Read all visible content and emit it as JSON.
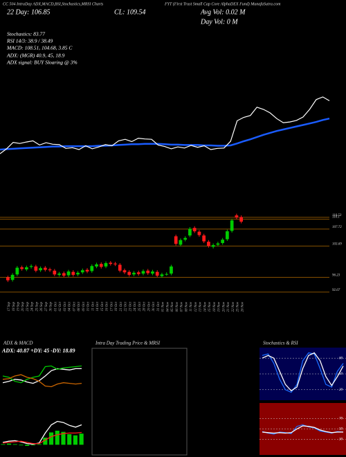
{
  "header": {
    "top": "CC 504 IntraDay ADX,MACD,BSI,Stochastics,MRSI Charts",
    "site": "FYT (First Trust Small Cap Core AlphaDEX Fund) MunafaSutra.com",
    "day22": "22 Day: 106.85",
    "close": "CL: 109.54",
    "avg_vol": "Avg Vol: 0.02 M",
    "day_vol": "Day Vol: 0 M",
    "stochastics": "Stochastics: 83.77",
    "rsi": "RSI 14/3: 38.9 / 38.49",
    "macd": "MACD: 108.51, 104.68, 3.85 C",
    "adx": "ADX: (MGR) 40.9, 45, 18.9",
    "adx_signal": "ADX signal: BUY Sloaring @ 3%"
  },
  "chart_data": [
    {
      "type": "candlestick",
      "categories": [
        "17 Sep",
        "18 Sep",
        "19 Sep",
        "20 Sep",
        "23 Sep",
        "24 Sep",
        "25 Sep",
        "26 Sep",
        "27 Sep",
        "30 Sep",
        "01 Oct",
        "02 Oct",
        "03 Oct",
        "04 Oct",
        "07 Oct",
        "08 Oct",
        "09 Oct",
        "10 Oct",
        "11 Oct",
        "14 Oct",
        "15 Oct",
        "16 Oct",
        "17 Oct",
        "18 Oct",
        "21 Oct",
        "22 Oct",
        "23 Oct",
        "24 Oct",
        "25 Oct",
        "28 Oct",
        "29 Oct",
        "30 Oct",
        "31 Oct",
        "01 Nov",
        "04 Nov",
        "05 Nov",
        "06 Nov",
        "07 Nov",
        "08 Nov",
        "11 Nov",
        "12 Nov",
        "13 Nov",
        "14 Nov",
        "15 Nov",
        "18 Nov",
        "19 Nov",
        "20 Nov",
        "21 Nov",
        "22 Nov",
        "25 Nov",
        "26 Nov"
      ],
      "open": [
        96.2,
        95.6,
        96.9,
        98.6,
        98.1,
        98.7,
        98.8,
        97.9,
        98.5,
        98.1,
        97.8,
        96.8,
        97.2,
        96.7,
        97.5,
        96.9,
        97.4,
        98.0,
        97.7,
        98.8,
        99.4,
        98.8,
        99.7,
        99.5,
        99.2,
        97.9,
        97.5,
        96.9,
        97.4,
        97.1,
        97.8,
        97.1,
        97.5,
        96.5,
        97.0,
        97.1,
        106.0,
        104.0,
        105.2,
        106.2,
        108.0,
        107.1,
        106.2,
        104.7,
        103.5,
        104.0,
        104.4,
        105.3,
        107.3,
        111.0,
        110.6
      ],
      "high": [
        96.6,
        97.2,
        98.9,
        99.0,
        99.0,
        99.3,
        99.2,
        98.8,
        98.9,
        98.5,
        98.2,
        97.5,
        97.6,
        98.0,
        97.9,
        97.7,
        98.3,
        98.4,
        99.3,
        99.7,
        99.8,
        100.0,
        100.1,
        99.9,
        99.6,
        98.3,
        97.9,
        97.7,
        97.8,
        98.1,
        98.2,
        98.0,
        97.9,
        97.3,
        97.4,
        99.2,
        106.4,
        105.5,
        106.0,
        108.2,
        108.4,
        107.5,
        106.6,
        105.1,
        104.3,
        104.7,
        105.6,
        107.6,
        110.2,
        111.4,
        111.0
      ],
      "low": [
        95.1,
        95.2,
        96.5,
        97.8,
        97.7,
        98.3,
        97.4,
        97.5,
        97.6,
        97.5,
        96.5,
        96.4,
        96.2,
        96.3,
        96.4,
        96.5,
        97.0,
        97.2,
        97.3,
        98.4,
        98.3,
        98.4,
        99.0,
        98.9,
        97.4,
        97.0,
        96.4,
        96.5,
        96.6,
        96.7,
        96.8,
        96.7,
        96.2,
        96.1,
        96.6,
        96.7,
        103.8,
        103.6,
        104.8,
        105.8,
        106.8,
        105.9,
        104.4,
        103.3,
        103.1,
        103.6,
        104.0,
        104.9,
        106.9,
        110.1,
        109.1
      ],
      "close": [
        95.5,
        96.8,
        98.5,
        98.2,
        98.6,
        98.9,
        97.8,
        98.4,
        98.0,
        97.9,
        96.9,
        97.1,
        96.6,
        97.6,
        96.8,
        97.3,
        97.9,
        97.6,
        98.9,
        99.3,
        98.7,
        99.6,
        99.4,
        99.3,
        97.8,
        97.4,
        96.8,
        97.3,
        97.0,
        97.7,
        97.2,
        97.6,
        96.6,
        96.9,
        97.0,
        98.8,
        104.2,
        105.1,
        105.6,
        107.8,
        107.2,
        106.3,
        104.8,
        103.7,
        103.9,
        104.3,
        105.2,
        107.2,
        109.8,
        110.5,
        109.5
      ],
      "ma": [
        96.6,
        96.7,
        96.8,
        96.9,
        97.0,
        97.1,
        97.2,
        97.3,
        97.4,
        97.4,
        97.5,
        97.5,
        97.5,
        97.5,
        97.5,
        97.6,
        97.6,
        97.7,
        97.8,
        97.9,
        98.0,
        98.0,
        98.1,
        98.1,
        98.1,
        98.0,
        97.9,
        97.9,
        97.8,
        97.8,
        97.8,
        97.7,
        97.7,
        97.6,
        97.6,
        97.7,
        98.2,
        98.8,
        99.3,
        99.9,
        100.5,
        101.0,
        101.5,
        101.9,
        102.3,
        102.7,
        103.1,
        103.5,
        103.9,
        104.4,
        104.8
      ],
      "ylim": [
        91,
        112
      ],
      "yticks": [
        110.53,
        110.1,
        107.72,
        103.69,
        96.23,
        92.67
      ],
      "up_color": "#00cc00",
      "down_color": "#ff1a1a",
      "line_color": "#ffffff",
      "ma_color": "#1a5cff",
      "level_color": "#b36b00"
    },
    {
      "type": "line",
      "title": "ADX & MACD",
      "subtitle": "ADX: 40.87 +DY: 45 -DY: 18.89",
      "ylim": [
        0,
        60
      ],
      "series": [
        {
          "color": "#ffffff",
          "values": [
            20,
            22,
            25,
            24,
            21,
            19,
            23,
            30,
            38,
            41,
            40,
            39,
            41,
            41
          ]
        },
        {
          "color": "#00cc00",
          "values": [
            30,
            28,
            22,
            20,
            25,
            28,
            30,
            44,
            45,
            40,
            42,
            43,
            44,
            45
          ]
        },
        {
          "color": "#cc6600",
          "values": [
            25,
            26,
            30,
            32,
            28,
            26,
            22,
            15,
            14,
            18,
            20,
            19,
            18,
            19
          ]
        }
      ]
    },
    {
      "type": "macd",
      "ylim": [
        -1.5,
        5
      ],
      "histogram": [
        0.1,
        0.2,
        0.1,
        -0.1,
        -0.2,
        -0.1,
        0.1,
        1.2,
        2.1,
        2.4,
        2.2,
        1.8,
        1.6,
        1.9
      ],
      "histogram_color": "#00cc00",
      "series": [
        {
          "color": "#ffffff",
          "values": [
            0.4,
            0.6,
            0.7,
            0.5,
            0.2,
            0.1,
            0.3,
            2.0,
            3.4,
            4.0,
            3.8,
            3.3,
            3.0,
            3.4
          ]
        },
        {
          "color": "#ff1a1a",
          "values": [
            0.3,
            0.4,
            0.5,
            0.6,
            0.4,
            0.2,
            0.2,
            0.8,
            1.4,
            1.7,
            1.9,
            2.0,
            2.0,
            2.1
          ]
        }
      ]
    },
    {
      "type": "line",
      "title": "Intra Day Trading Price & MRSI",
      "series": []
    },
    {
      "type": "line",
      "title": "Stochastics & RSI",
      "bg": "#000050",
      "ylim": [
        0,
        100
      ],
      "yticks": [
        20,
        50,
        80
      ],
      "series": [
        {
          "color": "#1a6cff",
          "values": [
            85,
            88,
            70,
            40,
            20,
            15,
            30,
            75,
            90,
            88,
            60,
            30,
            25,
            55,
            70
          ]
        },
        {
          "color": "#ffffff",
          "values": [
            80,
            85,
            80,
            55,
            30,
            18,
            25,
            60,
            85,
            90,
            75,
            45,
            28,
            45,
            65
          ]
        }
      ]
    },
    {
      "type": "line",
      "bg": "#8b0000",
      "ylim": [
        0,
        100
      ],
      "yticks": [
        30,
        50,
        70
      ],
      "series": [
        {
          "color": "#1a6cff",
          "values": [
            45,
            42,
            40,
            44,
            43,
            41,
            55,
            58,
            54,
            52,
            46,
            44,
            42,
            45,
            44
          ]
        },
        {
          "color": "#ffffff",
          "values": [
            44,
            43,
            42,
            43,
            42,
            43,
            50,
            56,
            55,
            53,
            48,
            45,
            43,
            44,
            44
          ]
        }
      ]
    }
  ]
}
